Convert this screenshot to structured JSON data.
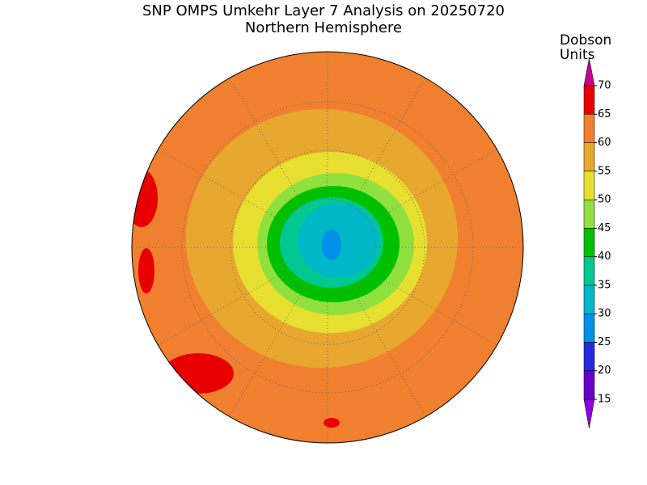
{
  "header": {
    "title": "SNP OMPS Umkehr Layer 7 Analysis on 20250720",
    "subtitle": "Northern Hemisphere"
  },
  "colorbar": {
    "title": [
      "Dobson",
      "Units"
    ],
    "levels": [
      15,
      20,
      25,
      30,
      35,
      40,
      45,
      50,
      55,
      60,
      65,
      70
    ],
    "colors": [
      "#6a00c8",
      "#2828e0",
      "#0090e8",
      "#00b8c8",
      "#00c890",
      "#00c000",
      "#90e040",
      "#e8e030",
      "#e8a830",
      "#f08030",
      "#e80000"
    ],
    "under_color": "#8a00e0",
    "over_color": "#c80090"
  }
}
